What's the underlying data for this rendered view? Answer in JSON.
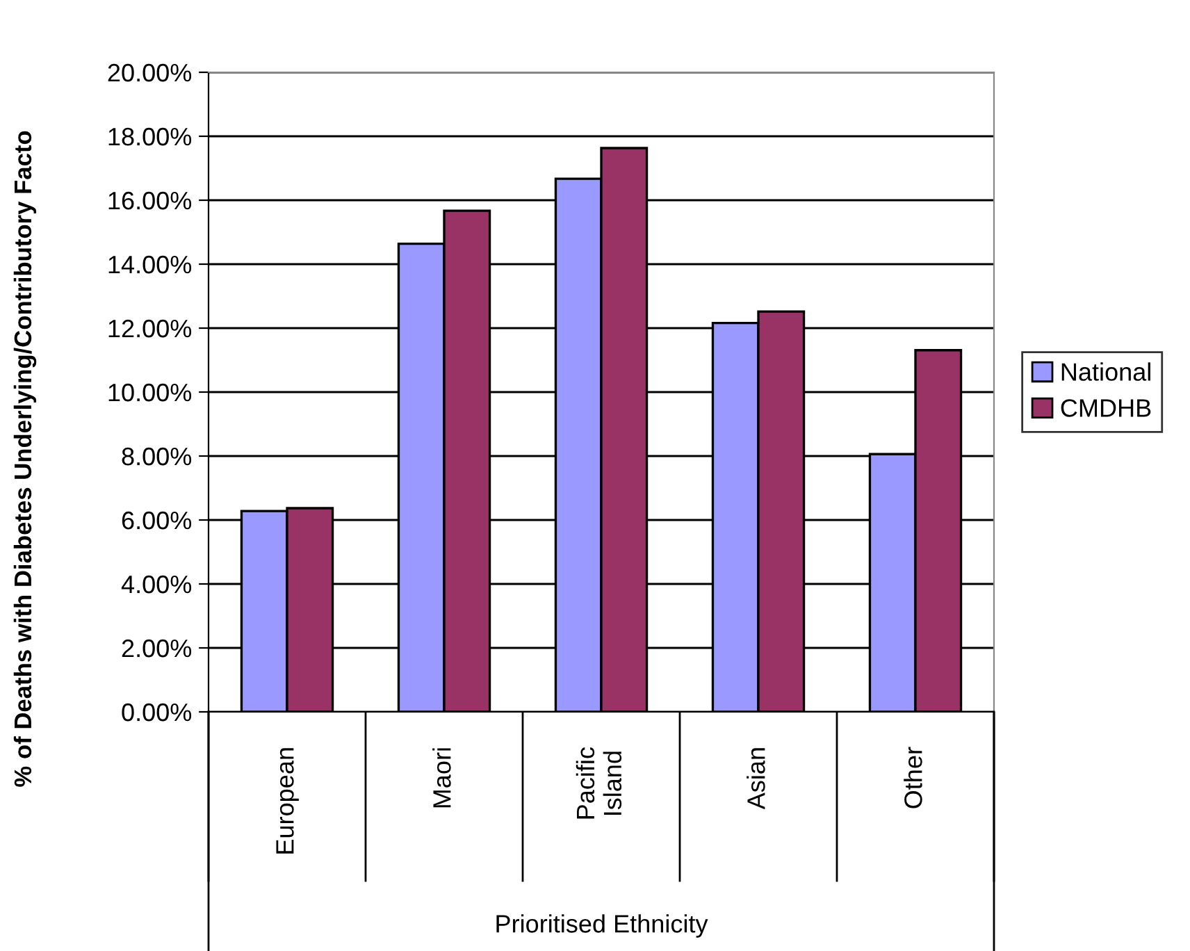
{
  "chart_data": {
    "type": "bar",
    "xlabel": "Prioritised Ethnicity",
    "ylabel": "% of Deaths with Diabetes Underlying/Contributory Facto",
    "categories": [
      "European",
      "Maori",
      "Pacific\nIsland",
      "Asian",
      "Other"
    ],
    "series": [
      {
        "name": "National",
        "color": "#9999ff",
        "values": [
          6.28,
          14.64,
          16.67,
          12.16,
          8.06
        ]
      },
      {
        "name": "CMDHB",
        "color": "#993366",
        "values": [
          6.37,
          15.67,
          17.63,
          12.52,
          11.31
        ]
      }
    ],
    "ylim": [
      0,
      20
    ],
    "yticks": [
      {
        "value": 0,
        "label": "0.00%"
      },
      {
        "value": 2,
        "label": "2.00%"
      },
      {
        "value": 4,
        "label": "4.00%"
      },
      {
        "value": 6,
        "label": "6.00%"
      },
      {
        "value": 8,
        "label": "8.00%"
      },
      {
        "value": 10,
        "label": "10.00%"
      },
      {
        "value": 12,
        "label": "12.00%"
      },
      {
        "value": 14,
        "label": "14.00%"
      },
      {
        "value": 16,
        "label": "16.00%"
      },
      {
        "value": 18,
        "label": "18.00%"
      },
      {
        "value": 20,
        "label": "20.00%"
      }
    ],
    "grid": "y",
    "legend": "right"
  }
}
